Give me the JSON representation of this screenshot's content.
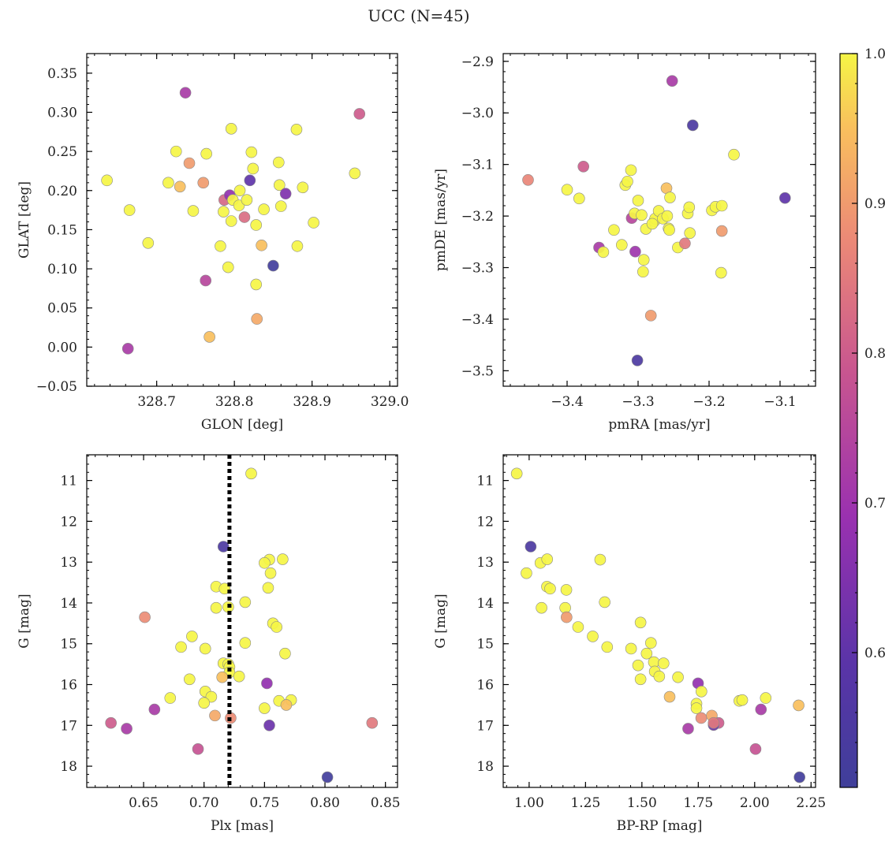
{
  "title": "UCC (N=45)",
  "colorbar": {
    "range": [
      0.51,
      1.0
    ],
    "ticks": [
      0.6,
      0.7,
      0.8,
      0.9,
      1.0
    ],
    "tick_labels": [
      "0.6",
      "0.7",
      "0.8",
      "0.9",
      "1.0"
    ],
    "colormap": "plasma"
  },
  "chart_data": [
    {
      "type": "scatter",
      "xlabel": "GLON [deg]",
      "ylabel": "GLAT [deg]",
      "xlim": [
        328.61,
        329.01
      ],
      "ylim": [
        -0.05,
        0.375
      ],
      "invert_y": false,
      "xticks": [
        328.6,
        328.7,
        328.8,
        328.9,
        329.0
      ],
      "xtick_labels": [
        "328.6",
        "328.7",
        "328.8",
        "328.9",
        "329.0"
      ],
      "yticks": [
        -0.05,
        0.0,
        0.05,
        0.1,
        0.15,
        0.2,
        0.25,
        0.3,
        0.35
      ],
      "ytick_labels": [
        "−0.05",
        "0.00",
        "0.05",
        "0.10",
        "0.15",
        "0.20",
        "0.25",
        "0.30",
        "0.35"
      ],
      "points": [
        {
          "x": 328.636,
          "y": 0.213,
          "c": 1.0
        },
        {
          "x": 328.665,
          "y": 0.175,
          "c": 1.0
        },
        {
          "x": 328.663,
          "y": -0.002,
          "c": 0.72
        },
        {
          "x": 328.689,
          "y": 0.133,
          "c": 1.0
        },
        {
          "x": 328.715,
          "y": 0.21,
          "c": 1.0
        },
        {
          "x": 328.725,
          "y": 0.25,
          "c": 1.0
        },
        {
          "x": 328.73,
          "y": 0.205,
          "c": 0.95
        },
        {
          "x": 328.737,
          "y": 0.325,
          "c": 0.72
        },
        {
          "x": 328.742,
          "y": 0.235,
          "c": 0.9
        },
        {
          "x": 328.747,
          "y": 0.174,
          "c": 1.0
        },
        {
          "x": 328.76,
          "y": 0.21,
          "c": 0.9
        },
        {
          "x": 328.764,
          "y": 0.247,
          "c": 1.0
        },
        {
          "x": 328.763,
          "y": 0.085,
          "c": 0.75
        },
        {
          "x": 328.768,
          "y": 0.013,
          "c": 0.95
        },
        {
          "x": 328.782,
          "y": 0.129,
          "c": 1.0
        },
        {
          "x": 328.786,
          "y": 0.173,
          "c": 1.0
        },
        {
          "x": 328.787,
          "y": 0.188,
          "c": 0.82
        },
        {
          "x": 328.792,
          "y": 0.102,
          "c": 1.0
        },
        {
          "x": 328.794,
          "y": 0.194,
          "c": 0.68
        },
        {
          "x": 328.796,
          "y": 0.161,
          "c": 1.0
        },
        {
          "x": 328.796,
          "y": 0.279,
          "c": 1.0
        },
        {
          "x": 328.798,
          "y": 0.188,
          "c": 1.0
        },
        {
          "x": 328.806,
          "y": 0.181,
          "c": 1.0
        },
        {
          "x": 328.807,
          "y": 0.2,
          "c": 1.0
        },
        {
          "x": 328.813,
          "y": 0.166,
          "c": 0.83
        },
        {
          "x": 328.816,
          "y": 0.188,
          "c": 1.0
        },
        {
          "x": 328.82,
          "y": 0.213,
          "c": 0.6
        },
        {
          "x": 328.822,
          "y": 0.249,
          "c": 1.0
        },
        {
          "x": 328.824,
          "y": 0.228,
          "c": 1.0
        },
        {
          "x": 328.828,
          "y": 0.156,
          "c": 1.0
        },
        {
          "x": 328.828,
          "y": 0.08,
          "c": 1.0
        },
        {
          "x": 328.829,
          "y": 0.036,
          "c": 0.92
        },
        {
          "x": 328.835,
          "y": 0.13,
          "c": 0.95
        },
        {
          "x": 328.838,
          "y": 0.176,
          "c": 1.0
        },
        {
          "x": 328.85,
          "y": 0.104,
          "c": 0.52
        },
        {
          "x": 328.857,
          "y": 0.236,
          "c": 1.0
        },
        {
          "x": 328.858,
          "y": 0.207,
          "c": 1.0
        },
        {
          "x": 328.86,
          "y": 0.18,
          "c": 1.0
        },
        {
          "x": 328.866,
          "y": 0.196,
          "c": 0.65
        },
        {
          "x": 328.88,
          "y": 0.278,
          "c": 1.0
        },
        {
          "x": 328.881,
          "y": 0.129,
          "c": 1.0
        },
        {
          "x": 328.888,
          "y": 0.204,
          "c": 1.0
        },
        {
          "x": 328.902,
          "y": 0.159,
          "c": 1.0
        },
        {
          "x": 328.955,
          "y": 0.222,
          "c": 1.0
        },
        {
          "x": 328.961,
          "y": 0.298,
          "c": 0.8
        }
      ]
    },
    {
      "type": "scatter",
      "xlabel": "pmRA [mas/yr]",
      "ylabel": "pmDE [mas/yr]",
      "xlim": [
        -3.49,
        -3.05
      ],
      "ylim": [
        -3.53,
        -2.885
      ],
      "invert_y": false,
      "xticks": [
        -3.4,
        -3.3,
        -3.2,
        -3.1
      ],
      "xtick_labels": [
        "−3.4",
        "−3.3",
        "−3.2",
        "−3.1"
      ],
      "yticks": [
        -3.5,
        -3.4,
        -3.3,
        -3.2,
        -3.1,
        -3.0,
        -2.9
      ],
      "ytick_labels": [
        "−3.5",
        "−3.4",
        "−3.3",
        "−3.2",
        "−3.1",
        "−3.0",
        "−2.9"
      ],
      "points": [
        {
          "x": -3.455,
          "y": -3.13,
          "c": 0.87
        },
        {
          "x": -3.4,
          "y": -3.149,
          "c": 1.0
        },
        {
          "x": -3.383,
          "y": -3.166,
          "c": 1.0
        },
        {
          "x": -3.377,
          "y": -3.104,
          "c": 0.8
        },
        {
          "x": -3.355,
          "y": -3.261,
          "c": 0.72
        },
        {
          "x": -3.349,
          "y": -3.27,
          "c": 1.0
        },
        {
          "x": -3.334,
          "y": -3.227,
          "c": 1.0
        },
        {
          "x": -3.323,
          "y": -3.256,
          "c": 1.0
        },
        {
          "x": -3.318,
          "y": -3.14,
          "c": 1.0
        },
        {
          "x": -3.315,
          "y": -3.133,
          "c": 1.0
        },
        {
          "x": -3.31,
          "y": -3.111,
          "c": 1.0
        },
        {
          "x": -3.309,
          "y": -3.204,
          "c": 0.75
        },
        {
          "x": -3.305,
          "y": -3.195,
          "c": 1.0
        },
        {
          "x": -3.304,
          "y": -3.269,
          "c": 0.7
        },
        {
          "x": -3.301,
          "y": -3.48,
          "c": 0.55
        },
        {
          "x": -3.3,
          "y": -3.17,
          "c": 1.0
        },
        {
          "x": -3.295,
          "y": -3.198,
          "c": 1.0
        },
        {
          "x": -3.293,
          "y": -3.308,
          "c": 1.0
        },
        {
          "x": -3.292,
          "y": -3.285,
          "c": 1.0
        },
        {
          "x": -3.289,
          "y": -3.225,
          "c": 1.0
        },
        {
          "x": -3.282,
          "y": -3.393,
          "c": 0.9
        },
        {
          "x": -3.277,
          "y": -3.21,
          "c": 1.0
        },
        {
          "x": -3.276,
          "y": -3.205,
          "c": 1.0
        },
        {
          "x": -3.271,
          "y": -3.19,
          "c": 1.0
        },
        {
          "x": -3.265,
          "y": -3.205,
          "c": 1.0
        },
        {
          "x": -3.26,
          "y": -3.146,
          "c": 0.95
        },
        {
          "x": -3.259,
          "y": -3.2,
          "c": 1.0
        },
        {
          "x": -3.257,
          "y": -3.224,
          "c": 1.0
        },
        {
          "x": -3.256,
          "y": -3.227,
          "c": 1.0
        },
        {
          "x": -3.255,
          "y": -3.164,
          "c": 1.0
        },
        {
          "x": -3.252,
          "y": -2.938,
          "c": 0.72
        },
        {
          "x": -3.244,
          "y": -3.261,
          "c": 1.0
        },
        {
          "x": -3.234,
          "y": -3.253,
          "c": 0.85
        },
        {
          "x": -3.23,
          "y": -3.195,
          "c": 1.0
        },
        {
          "x": -3.228,
          "y": -3.183,
          "c": 1.0
        },
        {
          "x": -3.227,
          "y": -3.233,
          "c": 1.0
        },
        {
          "x": -3.223,
          "y": -3.024,
          "c": 0.55
        },
        {
          "x": -3.196,
          "y": -3.189,
          "c": 1.0
        },
        {
          "x": -3.191,
          "y": -3.182,
          "c": 1.0
        },
        {
          "x": -3.182,
          "y": -3.18,
          "c": 1.0
        },
        {
          "x": -3.182,
          "y": -3.229,
          "c": 0.9
        },
        {
          "x": -3.183,
          "y": -3.31,
          "c": 1.0
        },
        {
          "x": -3.165,
          "y": -3.081,
          "c": 1.0
        },
        {
          "x": -3.093,
          "y": -3.165,
          "c": 0.6
        },
        {
          "x": -3.28,
          "y": -3.215,
          "c": 1.0
        }
      ]
    },
    {
      "type": "scatter",
      "xlabel": "Plx [mas]",
      "ylabel": "G [mag]",
      "xlim": [
        0.603,
        0.86
      ],
      "ylim": [
        18.52,
        10.37
      ],
      "invert_y": true,
      "vline": {
        "x": 0.721,
        "style": "dotted",
        "color": "#000000"
      },
      "xticks": [
        0.65,
        0.7,
        0.75,
        0.8,
        0.85
      ],
      "xtick_labels": [
        "0.65",
        "0.70",
        "0.75",
        "0.80",
        "0.85"
      ],
      "yticks": [
        11,
        12,
        13,
        14,
        15,
        16,
        17,
        18
      ],
      "ytick_labels": [
        "11",
        "12",
        "13",
        "14",
        "15",
        "16",
        "17",
        "18"
      ],
      "points": [
        {
          "x": 0.739,
          "y": 10.83,
          "c": 1.0
        },
        {
          "x": 0.716,
          "y": 12.62,
          "c": 0.55
        },
        {
          "x": 0.754,
          "y": 12.94,
          "c": 1.0
        },
        {
          "x": 0.765,
          "y": 12.93,
          "c": 1.0
        },
        {
          "x": 0.75,
          "y": 13.02,
          "c": 1.0
        },
        {
          "x": 0.755,
          "y": 13.27,
          "c": 1.0
        },
        {
          "x": 0.71,
          "y": 13.6,
          "c": 1.0
        },
        {
          "x": 0.717,
          "y": 13.65,
          "c": 1.0
        },
        {
          "x": 0.753,
          "y": 13.63,
          "c": 1.0
        },
        {
          "x": 0.734,
          "y": 13.98,
          "c": 1.0
        },
        {
          "x": 0.71,
          "y": 14.12,
          "c": 1.0
        },
        {
          "x": 0.72,
          "y": 14.1,
          "c": 1.0
        },
        {
          "x": 0.651,
          "y": 14.35,
          "c": 0.88
        },
        {
          "x": 0.757,
          "y": 14.5,
          "c": 1.0
        },
        {
          "x": 0.76,
          "y": 14.59,
          "c": 1.0
        },
        {
          "x": 0.69,
          "y": 14.82,
          "c": 1.0
        },
        {
          "x": 0.734,
          "y": 14.98,
          "c": 1.0
        },
        {
          "x": 0.681,
          "y": 15.08,
          "c": 1.0
        },
        {
          "x": 0.701,
          "y": 15.12,
          "c": 1.0
        },
        {
          "x": 0.767,
          "y": 15.24,
          "c": 1.0
        },
        {
          "x": 0.716,
          "y": 15.48,
          "c": 1.0
        },
        {
          "x": 0.72,
          "y": 15.5,
          "c": 1.0
        },
        {
          "x": 0.721,
          "y": 15.57,
          "c": 1.0
        },
        {
          "x": 0.721,
          "y": 15.7,
          "c": 1.0
        },
        {
          "x": 0.715,
          "y": 15.82,
          "c": 0.95
        },
        {
          "x": 0.729,
          "y": 15.8,
          "c": 1.0
        },
        {
          "x": 0.688,
          "y": 15.87,
          "c": 1.0
        },
        {
          "x": 0.752,
          "y": 15.97,
          "c": 0.68
        },
        {
          "x": 0.701,
          "y": 16.17,
          "c": 1.0
        },
        {
          "x": 0.706,
          "y": 16.3,
          "c": 1.0
        },
        {
          "x": 0.672,
          "y": 16.33,
          "c": 1.0
        },
        {
          "x": 0.762,
          "y": 16.4,
          "c": 1.0
        },
        {
          "x": 0.772,
          "y": 16.38,
          "c": 1.0
        },
        {
          "x": 0.7,
          "y": 16.45,
          "c": 1.0
        },
        {
          "x": 0.768,
          "y": 16.5,
          "c": 0.95
        },
        {
          "x": 0.75,
          "y": 16.58,
          "c": 1.0
        },
        {
          "x": 0.659,
          "y": 16.61,
          "c": 0.72
        },
        {
          "x": 0.709,
          "y": 16.76,
          "c": 0.92
        },
        {
          "x": 0.722,
          "y": 16.82,
          "c": 0.88
        },
        {
          "x": 0.623,
          "y": 16.94,
          "c": 0.8
        },
        {
          "x": 0.754,
          "y": 17.0,
          "c": 0.62
        },
        {
          "x": 0.839,
          "y": 16.94,
          "c": 0.85
        },
        {
          "x": 0.636,
          "y": 17.08,
          "c": 0.72
        },
        {
          "x": 0.695,
          "y": 17.58,
          "c": 0.78
        },
        {
          "x": 0.802,
          "y": 18.27,
          "c": 0.52
        }
      ]
    },
    {
      "type": "scatter",
      "xlabel": "BP-RP [mag]",
      "ylabel": "G [mag]",
      "xlim": [
        0.885,
        2.27
      ],
      "ylim": [
        18.52,
        10.37
      ],
      "invert_y": true,
      "xticks": [
        1.0,
        1.25,
        1.5,
        1.75,
        2.0,
        2.25
      ],
      "xtick_labels": [
        "1.00",
        "1.25",
        "1.50",
        "1.75",
        "2.00",
        "2.25"
      ],
      "yticks": [
        11,
        12,
        13,
        14,
        15,
        16,
        17,
        18
      ],
      "ytick_labels": [
        "11",
        "12",
        "13",
        "14",
        "15",
        "16",
        "17",
        "18"
      ],
      "points": [
        {
          "x": 0.945,
          "y": 10.83,
          "c": 1.0
        },
        {
          "x": 1.007,
          "y": 12.62,
          "c": 0.55
        },
        {
          "x": 0.988,
          "y": 13.27,
          "c": 1.0
        },
        {
          "x": 1.05,
          "y": 13.02,
          "c": 1.0
        },
        {
          "x": 1.08,
          "y": 12.93,
          "c": 1.0
        },
        {
          "x": 1.315,
          "y": 12.94,
          "c": 1.0
        },
        {
          "x": 1.079,
          "y": 13.6,
          "c": 1.0
        },
        {
          "x": 1.093,
          "y": 13.65,
          "c": 1.0
        },
        {
          "x": 1.165,
          "y": 13.68,
          "c": 1.0
        },
        {
          "x": 1.335,
          "y": 13.98,
          "c": 1.0
        },
        {
          "x": 1.055,
          "y": 14.12,
          "c": 1.0
        },
        {
          "x": 1.16,
          "y": 14.12,
          "c": 1.0
        },
        {
          "x": 1.166,
          "y": 14.35,
          "c": 0.9
        },
        {
          "x": 1.217,
          "y": 14.59,
          "c": 1.0
        },
        {
          "x": 1.494,
          "y": 14.48,
          "c": 1.0
        },
        {
          "x": 1.282,
          "y": 14.82,
          "c": 1.0
        },
        {
          "x": 1.54,
          "y": 14.98,
          "c": 1.0
        },
        {
          "x": 1.346,
          "y": 15.08,
          "c": 1.0
        },
        {
          "x": 1.452,
          "y": 15.12,
          "c": 1.0
        },
        {
          "x": 1.521,
          "y": 15.24,
          "c": 1.0
        },
        {
          "x": 1.553,
          "y": 15.45,
          "c": 1.0
        },
        {
          "x": 1.596,
          "y": 15.48,
          "c": 1.0
        },
        {
          "x": 1.483,
          "y": 15.53,
          "c": 1.0
        },
        {
          "x": 1.557,
          "y": 15.68,
          "c": 1.0
        },
        {
          "x": 1.577,
          "y": 15.8,
          "c": 1.0
        },
        {
          "x": 1.66,
          "y": 15.82,
          "c": 1.0
        },
        {
          "x": 1.494,
          "y": 15.87,
          "c": 1.0
        },
        {
          "x": 1.749,
          "y": 15.97,
          "c": 0.68
        },
        {
          "x": 1.764,
          "y": 16.17,
          "c": 1.0
        },
        {
          "x": 1.623,
          "y": 16.3,
          "c": 0.95
        },
        {
          "x": 2.049,
          "y": 16.33,
          "c": 1.0
        },
        {
          "x": 1.932,
          "y": 16.4,
          "c": 1.0
        },
        {
          "x": 1.945,
          "y": 16.38,
          "c": 1.0
        },
        {
          "x": 1.742,
          "y": 16.47,
          "c": 1.0
        },
        {
          "x": 2.195,
          "y": 16.51,
          "c": 0.95
        },
        {
          "x": 1.742,
          "y": 16.58,
          "c": 1.0
        },
        {
          "x": 2.028,
          "y": 16.61,
          "c": 0.72
        },
        {
          "x": 1.81,
          "y": 16.76,
          "c": 0.92
        },
        {
          "x": 1.763,
          "y": 16.82,
          "c": 0.88
        },
        {
          "x": 1.84,
          "y": 16.94,
          "c": 0.8
        },
        {
          "x": 1.818,
          "y": 16.99,
          "c": 0.62
        },
        {
          "x": 1.818,
          "y": 16.94,
          "c": 0.85
        },
        {
          "x": 1.705,
          "y": 17.08,
          "c": 0.72
        },
        {
          "x": 2.004,
          "y": 17.58,
          "c": 0.78
        },
        {
          "x": 2.199,
          "y": 18.27,
          "c": 0.52
        }
      ]
    }
  ]
}
